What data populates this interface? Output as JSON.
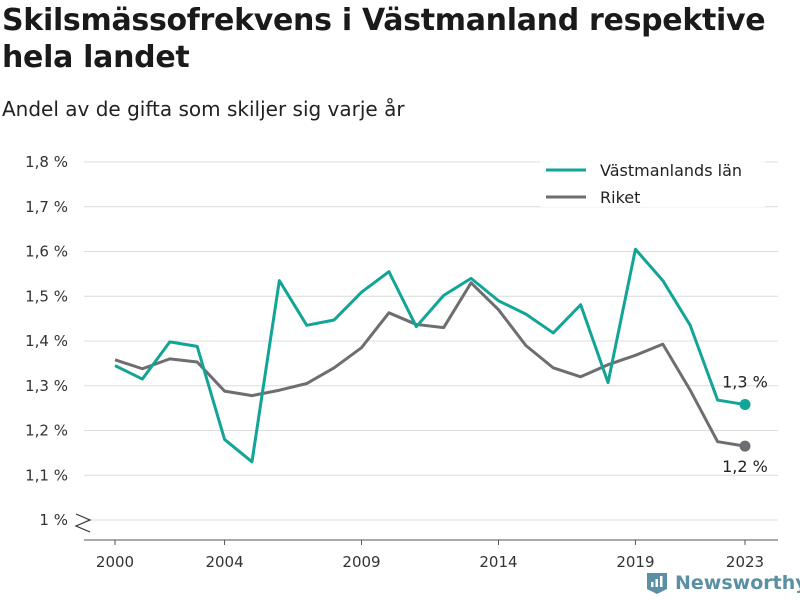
{
  "title": "Skilsmässofrekvens i Västmanland respektive hela landet",
  "subtitle": "Andel av de gifta som skiljer sig varje år",
  "brand": {
    "name": "Newsworthy",
    "icon": "newsworthy-logo-icon",
    "color": "#5b8fa3"
  },
  "chart_data": {
    "type": "line",
    "x": [
      2000,
      2001,
      2002,
      2003,
      2004,
      2005,
      2006,
      2007,
      2008,
      2009,
      2010,
      2011,
      2012,
      2013,
      2014,
      2015,
      2016,
      2017,
      2018,
      2019,
      2020,
      2021,
      2022,
      2023
    ],
    "series": [
      {
        "name": "Västmanlands län",
        "color": "#12a597",
        "values": [
          1.345,
          1.315,
          1.398,
          1.388,
          1.18,
          1.13,
          1.535,
          1.435,
          1.447,
          1.509,
          1.555,
          1.432,
          1.502,
          1.54,
          1.49,
          1.46,
          1.418,
          1.481,
          1.307,
          1.605,
          1.535,
          1.435,
          1.268,
          1.258
        ],
        "end_label": "1,3 %"
      },
      {
        "name": "Riket",
        "color": "#6e6e72",
        "values": [
          1.358,
          1.338,
          1.36,
          1.353,
          1.288,
          1.278,
          1.29,
          1.305,
          1.34,
          1.385,
          1.463,
          1.437,
          1.43,
          1.53,
          1.47,
          1.39,
          1.34,
          1.32,
          1.347,
          1.368,
          1.393,
          1.29,
          1.175,
          1.165
        ],
        "end_label": "1,2 %"
      }
    ],
    "y_ticks": [
      {
        "value": 1.0,
        "label": "1 %"
      },
      {
        "value": 1.1,
        "label": "1,1 %"
      },
      {
        "value": 1.2,
        "label": "1,2 %"
      },
      {
        "value": 1.3,
        "label": "1,3 %"
      },
      {
        "value": 1.4,
        "label": "1,4 %"
      },
      {
        "value": 1.5,
        "label": "1,5 %"
      },
      {
        "value": 1.6,
        "label": "1,6 %"
      },
      {
        "value": 1.7,
        "label": "1,7 %"
      },
      {
        "value": 1.8,
        "label": "1,8 %"
      }
    ],
    "x_ticks": [
      2000,
      2004,
      2009,
      2014,
      2019,
      2023
    ],
    "ylim": [
      1.0,
      1.8
    ],
    "xlim": [
      2000,
      2023
    ],
    "y_axis_break": true,
    "grid": true,
    "legend_position": "top-right"
  }
}
